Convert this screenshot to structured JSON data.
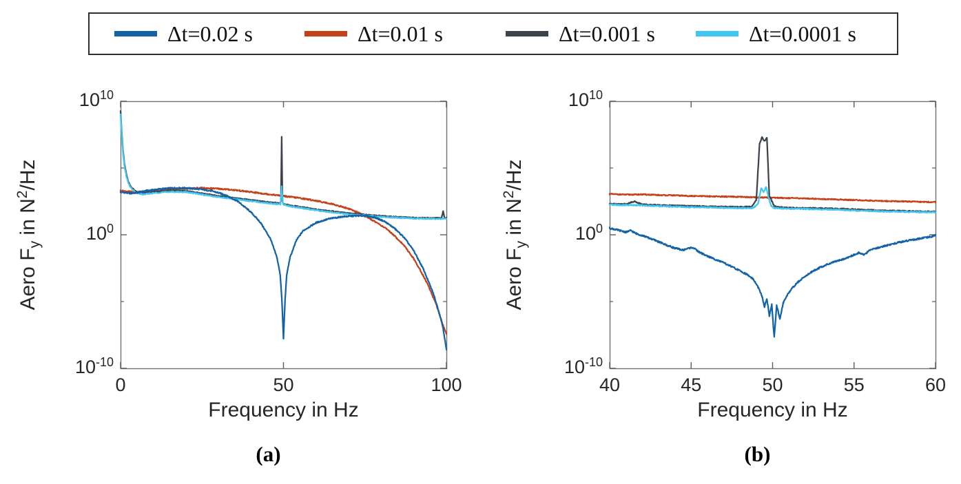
{
  "figure": {
    "background": "#ffffff"
  },
  "legend": {
    "border_color": "#2f2f2f",
    "items": [
      {
        "label": "Δt=0.02 s",
        "color": "#1262a8"
      },
      {
        "label": "Δt=0.01 s",
        "color": "#c5411a"
      },
      {
        "label": "Δt=0.001 s",
        "color": "#3d434c"
      },
      {
        "label": "Δt=0.0001 s",
        "color": "#41c6f1"
      }
    ]
  },
  "ylabel_parts": [
    {
      "text": "Aero F"
    },
    {
      "text": "y",
      "script": "sub"
    },
    {
      "text": " in N"
    },
    {
      "text": "2",
      "script": "sup"
    },
    {
      "text": "/Hz"
    }
  ],
  "chart_data": [
    {
      "id": "a",
      "type": "line",
      "sublabel": "(a)",
      "xlabel": "Frequency in Hz",
      "axis": {
        "xlim": [
          0,
          100
        ],
        "xticks": [
          0,
          50,
          100
        ],
        "xtick_labels": [
          "0",
          "50",
          "100"
        ],
        "yscale": "log",
        "ylim_exponents": [
          -10,
          10
        ],
        "ytick_exponents": [
          10,
          0,
          -10
        ],
        "ytick_labels": [
          {
            "base": "10",
            "exp": "10"
          },
          {
            "base": "10",
            "exp": "0"
          },
          {
            "base": "10",
            "exp": "-10"
          }
        ],
        "yminor_exponents": [
          5,
          -5
        ],
        "grid": false,
        "box": true
      },
      "series": [
        {
          "name": "Δt=0.02 s",
          "color": "#1262a8",
          "noise_log10": 0.05,
          "x": [
            0,
            3,
            5,
            8,
            12,
            16,
            20,
            24,
            28,
            32,
            36,
            40,
            43,
            46,
            48,
            49,
            49.5,
            50,
            50.5,
            51,
            52,
            54,
            56,
            60,
            64,
            68,
            72,
            75,
            78,
            81,
            84,
            87,
            90,
            93,
            96,
            98,
            99,
            100
          ],
          "log10y": [
            3.2,
            3.1,
            3.15,
            3.3,
            3.42,
            3.5,
            3.5,
            3.42,
            3.28,
            3.0,
            2.5,
            1.7,
            0.9,
            -0.3,
            -1.7,
            -3.0,
            -4.8,
            -7.8,
            -4.8,
            -3.0,
            -1.7,
            -0.4,
            0.3,
            0.9,
            1.2,
            1.35,
            1.42,
            1.42,
            1.3,
            1.0,
            0.5,
            -0.2,
            -1.2,
            -2.6,
            -4.4,
            -6.0,
            -7.0,
            -8.6
          ]
        },
        {
          "name": "Δt=0.01 s",
          "color": "#c5411a",
          "noise_log10": 0.05,
          "x": [
            0,
            4,
            8,
            12,
            16,
            20,
            25,
            30,
            35,
            40,
            45,
            50,
            55,
            60,
            65,
            70,
            74,
            78,
            81,
            84,
            87,
            90,
            93,
            95,
            97,
            99,
            100
          ],
          "log10y": [
            3.3,
            3.2,
            3.25,
            3.3,
            3.4,
            3.45,
            3.5,
            3.45,
            3.35,
            3.2,
            3.05,
            2.9,
            2.75,
            2.55,
            2.3,
            1.95,
            1.55,
            1.0,
            0.55,
            -0.05,
            -0.8,
            -1.8,
            -3.1,
            -4.1,
            -5.3,
            -6.8,
            -7.4
          ]
        },
        {
          "name": "Δt=0.001 s",
          "color": "#3d434c",
          "noise_log10": 0.04,
          "x": [
            0,
            0.4,
            0.8,
            1.2,
            1.8,
            2.5,
            3.5,
            5,
            7,
            10,
            15,
            20,
            25,
            30,
            35,
            40,
            45,
            48,
            49,
            49.2,
            49.45,
            49.7,
            50,
            52,
            55,
            60,
            65,
            70,
            75,
            80,
            85,
            90,
            95,
            98.5,
            99,
            99.4,
            100
          ],
          "log10y": [
            9.3,
            7.5,
            6.2,
            5.3,
            4.5,
            3.9,
            3.5,
            3.2,
            3.1,
            3.2,
            3.3,
            3.28,
            3.1,
            2.9,
            2.75,
            2.6,
            2.45,
            2.38,
            2.35,
            2.5,
            7.35,
            2.5,
            2.3,
            2.2,
            2.1,
            1.9,
            1.75,
            1.6,
            1.5,
            1.4,
            1.33,
            1.28,
            1.25,
            1.25,
            1.8,
            1.25,
            1.25
          ]
        },
        {
          "name": "Δt=0.0001 s",
          "color": "#41c6f1",
          "noise_log10": 0.04,
          "x": [
            0,
            0.4,
            0.8,
            1.2,
            1.8,
            2.5,
            3.5,
            5,
            7,
            10,
            15,
            20,
            25,
            30,
            35,
            40,
            45,
            48,
            49.1,
            49.45,
            49.8,
            50.2,
            52,
            55,
            60,
            65,
            70,
            75,
            80,
            85,
            90,
            95,
            100
          ],
          "log10y": [
            9.0,
            7.3,
            6.0,
            5.1,
            4.35,
            3.8,
            3.4,
            3.12,
            3.02,
            3.12,
            3.22,
            3.2,
            3.02,
            2.82,
            2.68,
            2.52,
            2.38,
            2.3,
            2.28,
            3.6,
            2.4,
            2.25,
            2.13,
            2.03,
            1.83,
            1.68,
            1.53,
            1.44,
            1.34,
            1.27,
            1.22,
            1.19,
            1.19
          ]
        }
      ]
    },
    {
      "id": "b",
      "type": "line",
      "sublabel": "(b)",
      "xlabel": "Frequency in Hz",
      "axis": {
        "xlim": [
          40,
          60
        ],
        "xticks": [
          40,
          45,
          50,
          55,
          60
        ],
        "xtick_labels": [
          "40",
          "45",
          "50",
          "55",
          "60"
        ],
        "yscale": "log",
        "ylim_exponents": [
          -10,
          10
        ],
        "ytick_exponents": [
          10,
          0,
          -10
        ],
        "ytick_labels": [
          {
            "base": "10",
            "exp": "10"
          },
          {
            "base": "10",
            "exp": "0"
          },
          {
            "base": "10",
            "exp": "-10"
          }
        ],
        "yminor_exponents": [
          5,
          -5
        ],
        "grid": false,
        "box": true
      },
      "series": [
        {
          "name": "Δt=0.02 s",
          "color": "#1262a8",
          "noise_log10": 0.06,
          "x": [
            40,
            40.5,
            41,
            41.3,
            41.6,
            42,
            42.5,
            43,
            43.5,
            44,
            44.5,
            44.8,
            45.1,
            45.5,
            46,
            46.5,
            47,
            47.5,
            48,
            48.4,
            48.8,
            49.1,
            49.35,
            49.5,
            49.65,
            49.8,
            49.95,
            50.1,
            50.25,
            50.45,
            50.65,
            50.9,
            51.2,
            51.6,
            52,
            52.5,
            53,
            53.5,
            54,
            54.5,
            55,
            55.3,
            55.6,
            56,
            56.5,
            57,
            57.5,
            58,
            58.5,
            59,
            59.5,
            60
          ],
          "log10y": [
            0.5,
            0.35,
            0.2,
            0.32,
            0.1,
            -0.05,
            -0.28,
            -0.52,
            -0.78,
            -1.0,
            -1.15,
            -1.02,
            -0.95,
            -1.3,
            -1.6,
            -1.85,
            -2.1,
            -2.4,
            -2.7,
            -2.95,
            -3.3,
            -3.9,
            -4.6,
            -5.4,
            -4.8,
            -6.1,
            -5.2,
            -7.7,
            -5.3,
            -6.3,
            -5.1,
            -4.5,
            -4.0,
            -3.5,
            -3.1,
            -2.7,
            -2.4,
            -2.15,
            -1.95,
            -1.75,
            -1.5,
            -1.35,
            -1.5,
            -1.15,
            -0.95,
            -0.8,
            -0.65,
            -0.5,
            -0.4,
            -0.3,
            -0.2,
            -0.05
          ]
        },
        {
          "name": "Δt=0.01 s",
          "color": "#c5411a",
          "noise_log10": 0.04,
          "x": [
            40,
            41,
            42,
            43,
            44,
            45,
            46,
            47,
            48,
            49,
            50,
            51,
            52,
            53,
            54,
            55,
            56,
            57,
            58,
            59,
            60
          ],
          "log10y": [
            3.05,
            3.0,
            3.02,
            2.97,
            2.95,
            2.9,
            2.88,
            2.86,
            2.83,
            2.8,
            2.78,
            2.75,
            2.72,
            2.68,
            2.64,
            2.6,
            2.56,
            2.52,
            2.5,
            2.47,
            2.44
          ]
        },
        {
          "name": "Δt=0.001 s",
          "color": "#3d434c",
          "noise_log10": 0.04,
          "x": [
            40,
            41,
            41.5,
            42,
            43,
            44,
            45,
            46,
            47,
            48,
            48.7,
            49.0,
            49.2,
            49.35,
            49.5,
            49.65,
            49.8,
            50.1,
            50.5,
            51,
            52,
            53,
            54,
            55,
            56,
            57,
            58,
            59,
            60
          ],
          "log10y": [
            2.32,
            2.3,
            2.5,
            2.28,
            2.22,
            2.18,
            2.15,
            2.12,
            2.1,
            2.08,
            2.1,
            2.6,
            6.8,
            7.3,
            7.0,
            7.3,
            2.9,
            2.15,
            2.05,
            2.02,
            2.0,
            1.98,
            1.95,
            1.9,
            1.85,
            1.8,
            1.78,
            1.75,
            1.73
          ]
        },
        {
          "name": "Δt=0.0001 s",
          "color": "#41c6f1",
          "noise_log10": 0.04,
          "x": [
            40,
            41,
            42,
            43,
            44,
            45,
            46,
            47,
            48,
            48.8,
            49.1,
            49.3,
            49.45,
            49.6,
            49.75,
            49.9,
            50.1,
            50.4,
            51,
            52,
            53,
            54,
            55,
            56,
            57,
            58,
            59,
            60
          ],
          "log10y": [
            2.24,
            2.22,
            2.2,
            2.15,
            2.1,
            2.07,
            2.05,
            2.02,
            2.0,
            2.0,
            2.3,
            3.5,
            3.2,
            3.6,
            2.8,
            2.2,
            2.0,
            1.98,
            1.95,
            1.93,
            1.9,
            1.88,
            1.82,
            1.78,
            1.74,
            1.72,
            1.7,
            1.68
          ]
        }
      ]
    }
  ]
}
